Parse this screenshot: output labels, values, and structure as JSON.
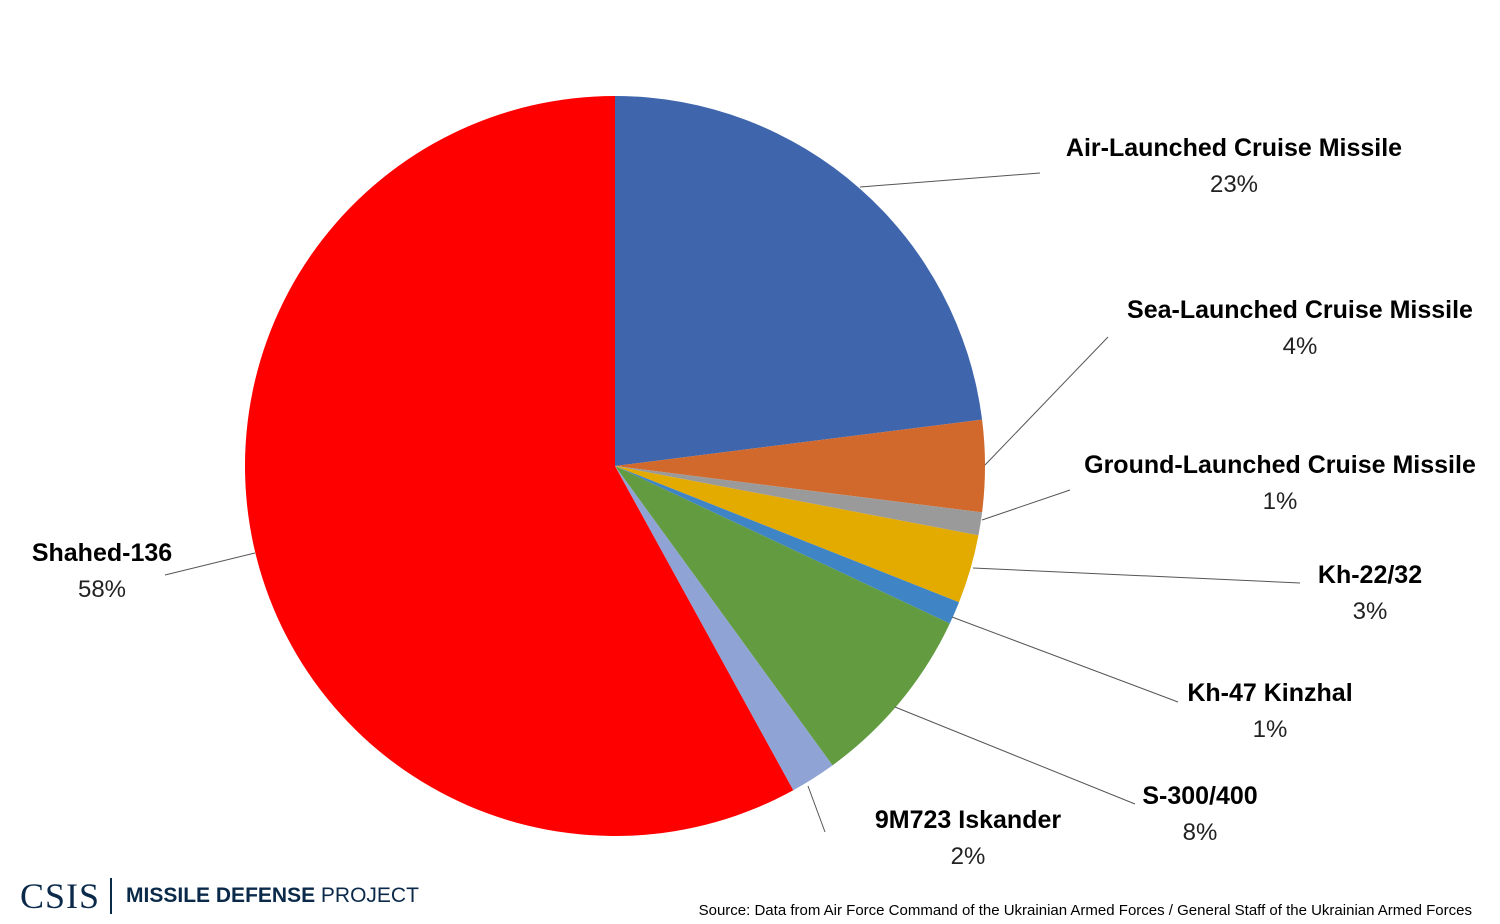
{
  "chart_data": {
    "type": "pie",
    "slices": [
      {
        "label": "Air-Launched Cruise Missile",
        "value": 23,
        "pct_label": "23%",
        "color": "#3f65ac"
      },
      {
        "label": "Sea-Launched Cruise Missile",
        "value": 4,
        "pct_label": "4%",
        "color": "#d2692c"
      },
      {
        "label": "Ground-Launched Cruise Missile",
        "value": 1,
        "pct_label": "1%",
        "color": "#9a9a9a"
      },
      {
        "label": "Kh-22/32",
        "value": 3,
        "pct_label": "3%",
        "color": "#e3aa00"
      },
      {
        "label": "Kh-47 Kinzhal",
        "value": 1,
        "pct_label": "1%",
        "color": "#3f85c6"
      },
      {
        "label": "S-300/400",
        "value": 8,
        "pct_label": "8%",
        "color": "#629b40"
      },
      {
        "label": "9M723 Iskander",
        "value": 2,
        "pct_label": "2%",
        "color": "#8fa3d4"
      },
      {
        "label": "Shahed-136",
        "value": 58,
        "pct_label": "58%",
        "color": "#ff0000"
      }
    ]
  },
  "footer": {
    "logo_csis": "CSIS",
    "logo_missile_defense": "MISSILE DEFENSE",
    "logo_project": "PROJECT",
    "source": "Source: Data from Air Force Command of the Ukrainian Armed Forces / General Staff of the Ukrainian Armed Forces"
  }
}
